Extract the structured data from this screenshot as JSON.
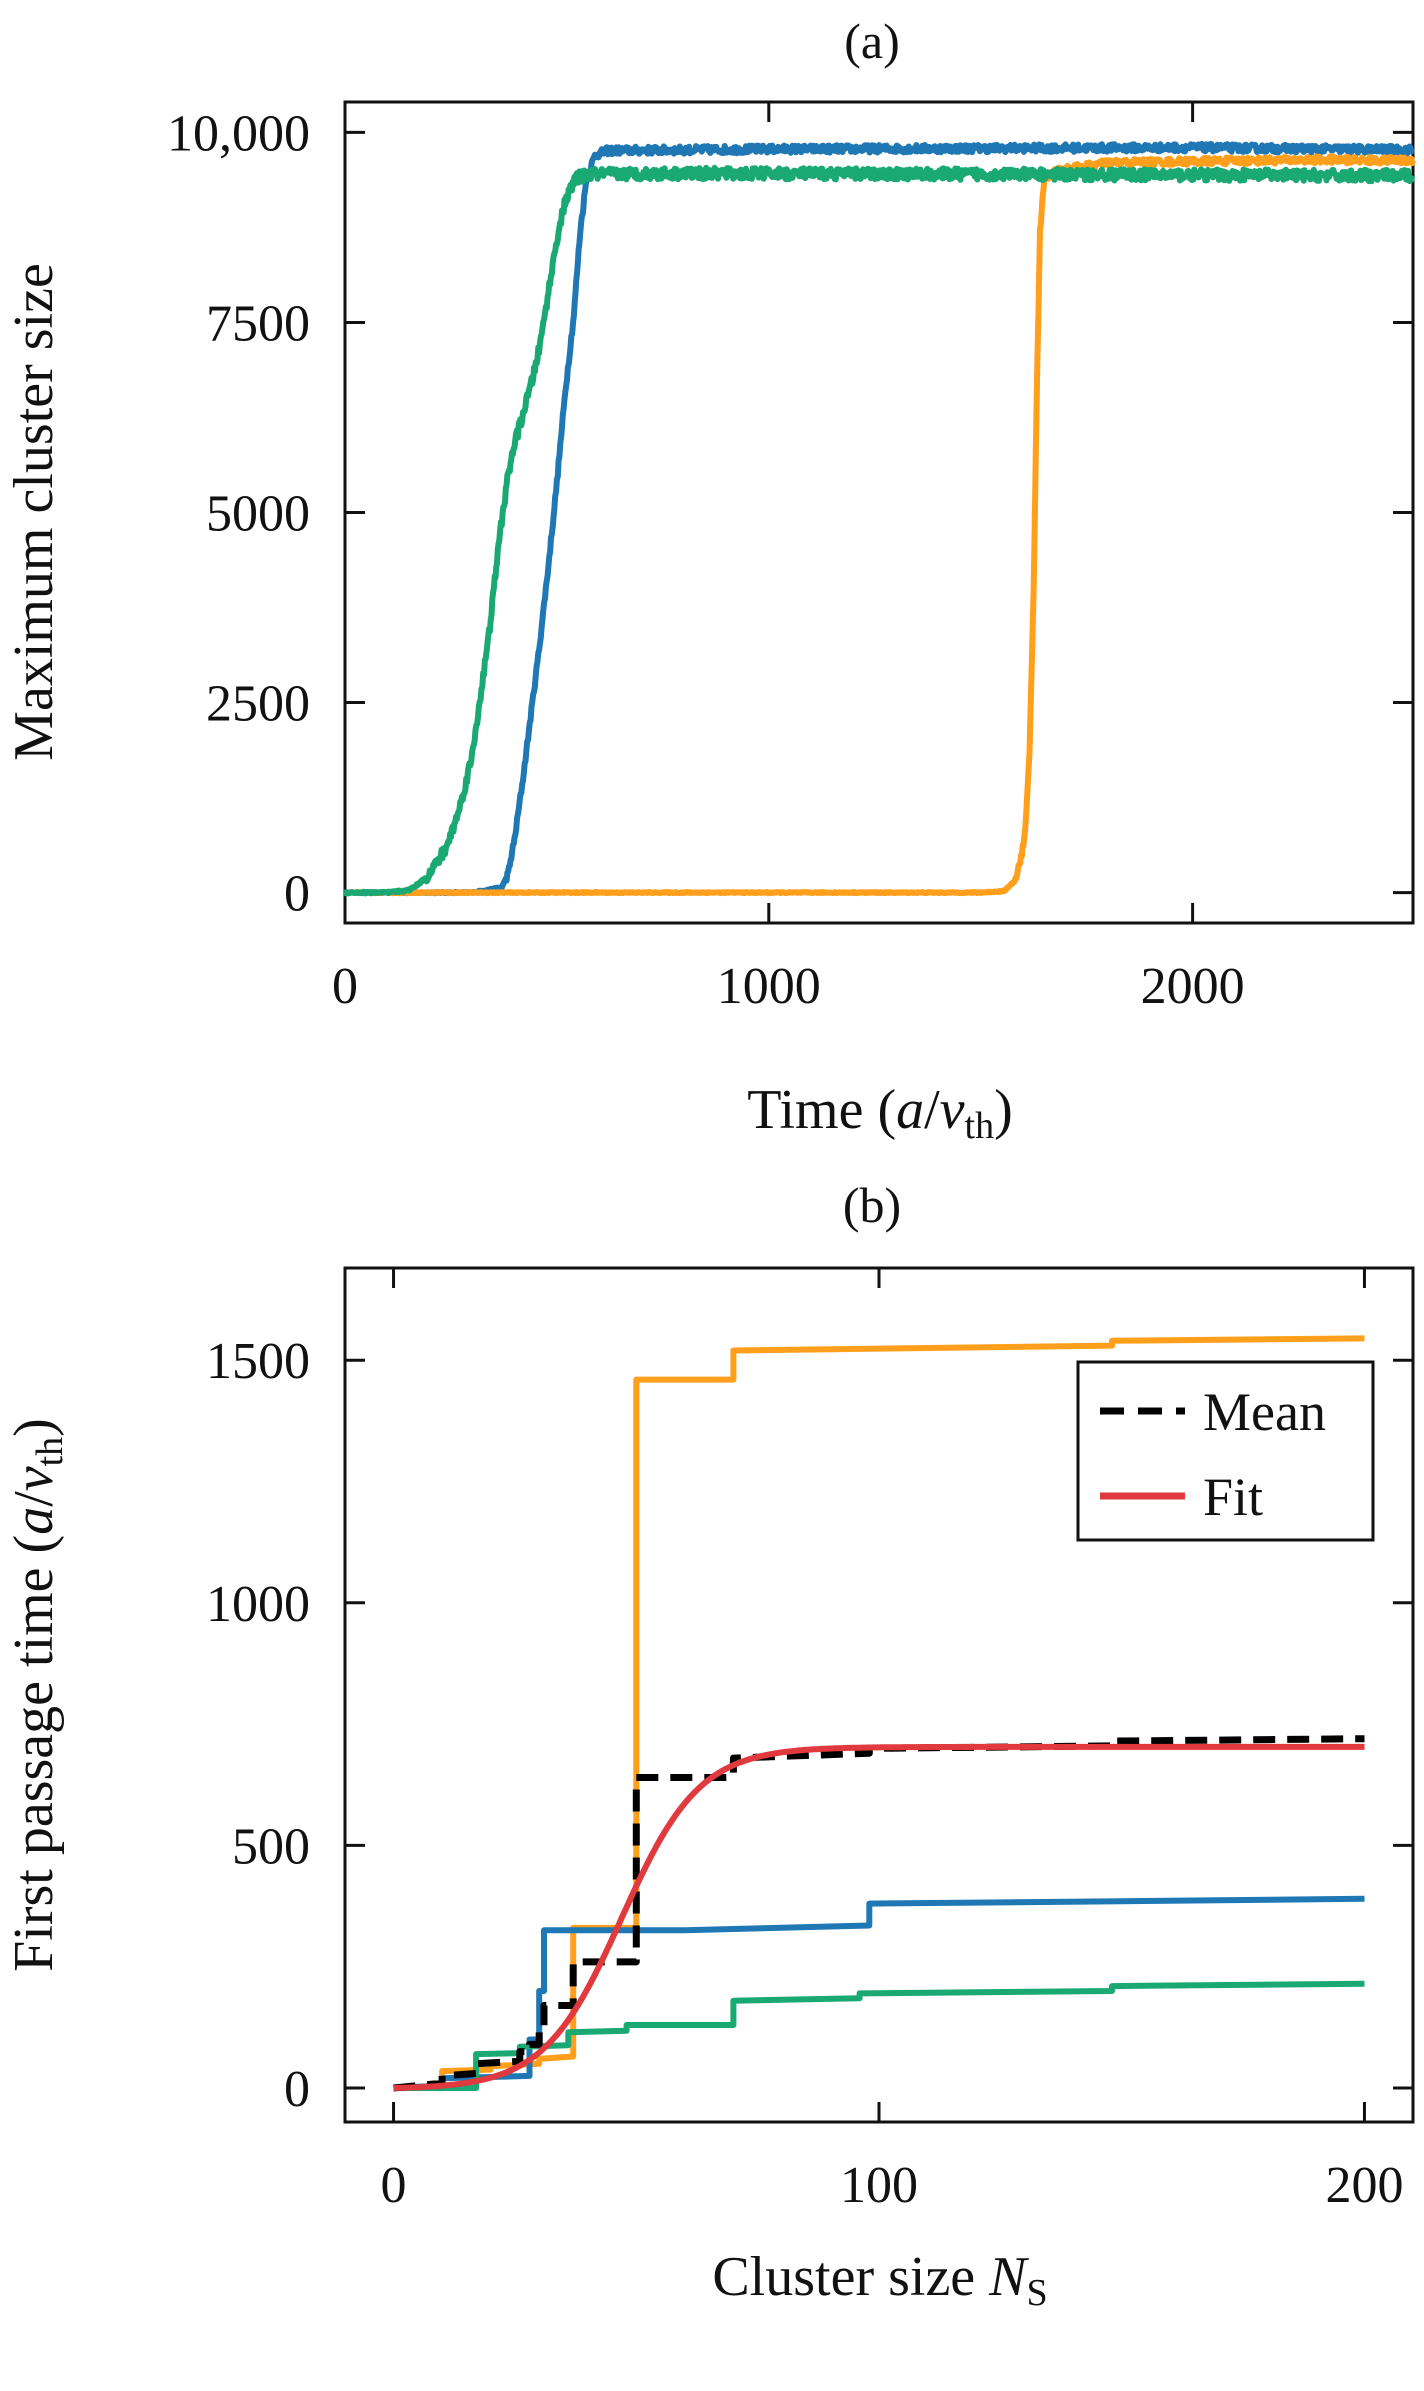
{
  "chart_data": [
    {
      "panel": "(a)",
      "type": "line",
      "xlabel": {
        "main": "Time (",
        "italic": "a",
        "sep": "/",
        "v": "v",
        "sub": "th",
        "close": ")"
      },
      "ylabel": "Maximum cluster size",
      "xlim": [
        0,
        2520
      ],
      "ylim": [
        -400,
        10400
      ],
      "xticks": [
        0,
        1000,
        2000
      ],
      "xtick_labels": [
        "0",
        "1000",
        "2000"
      ],
      "yticks": [
        0,
        2500,
        5000,
        7500,
        10000
      ],
      "ytick_labels": [
        "0",
        "2500",
        "5000",
        "7500",
        "10,000"
      ],
      "grid": false,
      "series": [
        {
          "color": "#1f77b4",
          "noise": 50,
          "points": [
            [
              0,
              0
            ],
            [
              300,
              0
            ],
            [
              370,
              70
            ],
            [
              385,
              250
            ],
            [
              400,
              700
            ],
            [
              420,
              1500
            ],
            [
              440,
              2400
            ],
            [
              460,
              3300
            ],
            [
              480,
              4300
            ],
            [
              500,
              5400
            ],
            [
              520,
              6600
            ],
            [
              540,
              7600
            ],
            [
              555,
              8700
            ],
            [
              570,
              9400
            ],
            [
              590,
              9700
            ],
            [
              620,
              9760
            ],
            [
              1000,
              9780
            ],
            [
              1500,
              9790
            ],
            [
              2000,
              9800
            ],
            [
              2520,
              9770
            ]
          ]
        },
        {
          "color": "#ff9f1c",
          "noise": 45,
          "points": [
            [
              0,
              0
            ],
            [
              1000,
              0
            ],
            [
              1500,
              0
            ],
            [
              1555,
              20
            ],
            [
              1580,
              150
            ],
            [
              1595,
              450
            ],
            [
              1605,
              800
            ],
            [
              1615,
              1800
            ],
            [
              1625,
              4000
            ],
            [
              1632,
              6500
            ],
            [
              1640,
              8700
            ],
            [
              1650,
              9400
            ],
            [
              1680,
              9500
            ],
            [
              1800,
              9600
            ],
            [
              2000,
              9620
            ],
            [
              2300,
              9640
            ],
            [
              2520,
              9630
            ]
          ]
        },
        {
          "color": "#1aa873",
          "noise": 75,
          "points": [
            [
              0,
              0
            ],
            [
              100,
              0
            ],
            [
              150,
              30
            ],
            [
              175,
              120
            ],
            [
              200,
              250
            ],
            [
              240,
              600
            ],
            [
              270,
              1100
            ],
            [
              300,
              1800
            ],
            [
              320,
              2600
            ],
            [
              340,
              3400
            ],
            [
              355,
              4200
            ],
            [
              370,
              4900
            ],
            [
              385,
              5500
            ],
            [
              400,
              5900
            ],
            [
              420,
              6300
            ],
            [
              440,
              6700
            ],
            [
              460,
              7200
            ],
            [
              480,
              7900
            ],
            [
              500,
              8600
            ],
            [
              520,
              9100
            ],
            [
              545,
              9400
            ],
            [
              580,
              9450
            ],
            [
              800,
              9460
            ],
            [
              1500,
              9450
            ],
            [
              2000,
              9440
            ],
            [
              2520,
              9430
            ]
          ]
        }
      ]
    },
    {
      "panel": "(b)",
      "type": "line",
      "xlabel": {
        "main": "Cluster size ",
        "italic": "N",
        "sub": "S"
      },
      "ylabel": {
        "main": "First passage time (",
        "italic": "a",
        "sep": "/",
        "v": "v",
        "sub": "th",
        "close": ")"
      },
      "xlim": [
        -10,
        210
      ],
      "ylim": [
        -70,
        1690
      ],
      "xticks": [
        0,
        100,
        200
      ],
      "xtick_labels": [
        "0",
        "100",
        "200"
      ],
      "yticks": [
        0,
        500,
        1000,
        1500
      ],
      "ytick_labels": [
        "0",
        "500",
        "1000",
        "1500"
      ],
      "grid": false,
      "legend": {
        "position": "top-right",
        "entries": [
          {
            "label": "Mean",
            "color": "#000000",
            "dash": true
          },
          {
            "label": "Fit",
            "color": "#e0393e",
            "dash": false
          }
        ]
      },
      "series": [
        {
          "color": "#ff9f1c",
          "points": [
            [
              0,
              0
            ],
            [
              10,
              5
            ],
            [
              10,
              35
            ],
            [
              20,
              38
            ],
            [
              20,
              45
            ],
            [
              30,
              50
            ],
            [
              30,
              60
            ],
            [
              37,
              65
            ],
            [
              37,
              330
            ],
            [
              50,
              330
            ],
            [
              50,
              1460
            ],
            [
              70,
              1460
            ],
            [
              70,
              1520
            ],
            [
              148,
              1530
            ],
            [
              148,
              1540
            ],
            [
              200,
              1545
            ]
          ]
        },
        {
          "color": "#1f77b4",
          "points": [
            [
              0,
              0
            ],
            [
              10,
              5
            ],
            [
              10,
              20
            ],
            [
              28,
              25
            ],
            [
              28,
              100
            ],
            [
              30,
              100
            ],
            [
              30,
              200
            ],
            [
              31,
              200
            ],
            [
              31,
              325
            ],
            [
              60,
              325
            ],
            [
              98,
              335
            ],
            [
              98,
              380
            ],
            [
              150,
              385
            ],
            [
              200,
              390
            ]
          ]
        },
        {
          "color": "#1aa873",
          "points": [
            [
              0,
              0
            ],
            [
              17,
              0
            ],
            [
              17,
              70
            ],
            [
              26,
              72
            ],
            [
              26,
              85
            ],
            [
              36,
              88
            ],
            [
              36,
              115
            ],
            [
              48,
              118
            ],
            [
              48,
              130
            ],
            [
              70,
              130
            ],
            [
              70,
              180
            ],
            [
              96,
              185
            ],
            [
              96,
              195
            ],
            [
              148,
              200
            ],
            [
              148,
              210
            ],
            [
              200,
              215
            ]
          ]
        },
        {
          "name": "Mean",
          "color": "#000000",
          "dash": true,
          "points": [
            [
              0,
              0
            ],
            [
              10,
              10
            ],
            [
              10,
              25
            ],
            [
              17,
              30
            ],
            [
              17,
              50
            ],
            [
              26,
              55
            ],
            [
              26,
              75
            ],
            [
              28,
              75
            ],
            [
              28,
              90
            ],
            [
              30,
              90
            ],
            [
              30,
              120
            ],
            [
              31,
              120
            ],
            [
              31,
              170
            ],
            [
              37,
              170
            ],
            [
              37,
              260
            ],
            [
              50,
              260
            ],
            [
              50,
              640
            ],
            [
              70,
              640
            ],
            [
              70,
              680
            ],
            [
              98,
              690
            ],
            [
              98,
              700
            ],
            [
              148,
              705
            ],
            [
              148,
              715
            ],
            [
              200,
              720
            ]
          ]
        },
        {
          "name": "Fit",
          "color": "#e0393e",
          "dash": false,
          "fit": {
            "A": 705,
            "x0": 47,
            "w": 8,
            "xmax": 200
          }
        }
      ]
    }
  ]
}
